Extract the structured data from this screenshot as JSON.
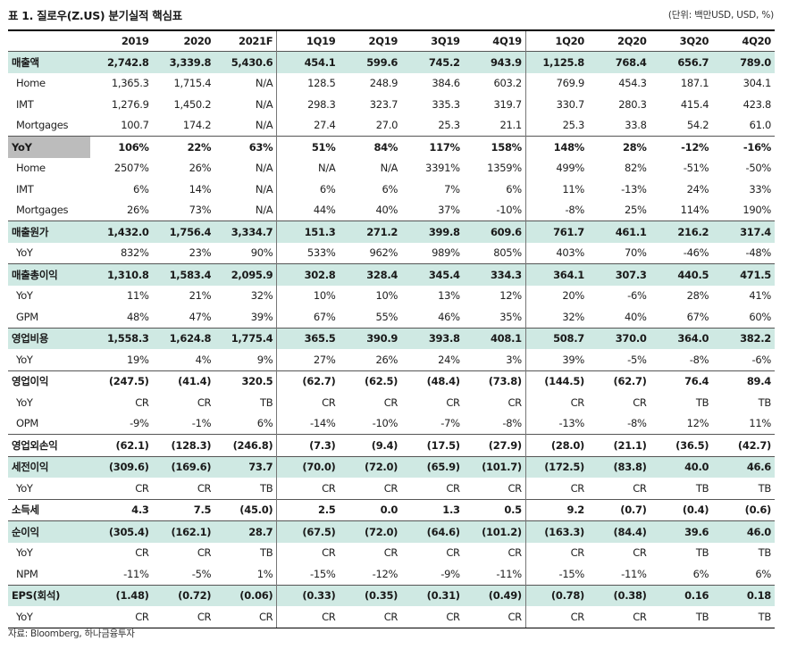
{
  "title": "표 1. 질로우(Z.US) 분기실적 핵심표",
  "unit": "(단위: 백만USD, USD, %)",
  "columns": [
    "2019",
    "2020",
    "2021F",
    "1Q19",
    "2Q19",
    "3Q19",
    "4Q19",
    "1Q20",
    "2Q20",
    "3Q20",
    "4Q20"
  ],
  "rows": [
    {
      "label": "매출액",
      "type": "main",
      "shade": true,
      "values": [
        "2,742.8",
        "3,339.8",
        "5,430.6",
        "454.1",
        "599.6",
        "745.2",
        "943.9",
        "1,125.8",
        "768.4",
        "656.7",
        "789.0"
      ]
    },
    {
      "label": "Home",
      "type": "sub",
      "values": [
        "1,365.3",
        "1,715.4",
        "N/A",
        "128.5",
        "248.9",
        "384.6",
        "603.2",
        "769.9",
        "454.3",
        "187.1",
        "304.1"
      ]
    },
    {
      "label": "IMT",
      "type": "sub",
      "values": [
        "1,276.9",
        "1,450.2",
        "N/A",
        "298.3",
        "323.7",
        "335.3",
        "319.7",
        "330.7",
        "280.3",
        "415.4",
        "423.8"
      ]
    },
    {
      "label": "Mortgages",
      "type": "sub",
      "values": [
        "100.7",
        "174.2",
        "N/A",
        "27.4",
        "27.0",
        "25.3",
        "21.1",
        "25.3",
        "33.8",
        "54.2",
        "61.0"
      ]
    },
    {
      "label": "YoY",
      "type": "main-gray",
      "values": [
        "106%",
        "22%",
        "63%",
        "51%",
        "84%",
        "117%",
        "158%",
        "148%",
        "28%",
        "-12%",
        "-16%"
      ]
    },
    {
      "label": "Home",
      "type": "sub",
      "values": [
        "2507%",
        "26%",
        "N/A",
        "N/A",
        "N/A",
        "3391%",
        "1359%",
        "499%",
        "82%",
        "-51%",
        "-50%"
      ]
    },
    {
      "label": "IMT",
      "type": "sub",
      "values": [
        "6%",
        "14%",
        "N/A",
        "6%",
        "6%",
        "7%",
        "6%",
        "11%",
        "-13%",
        "24%",
        "33%"
      ]
    },
    {
      "label": "Mortgages",
      "type": "sub",
      "values": [
        "26%",
        "73%",
        "N/A",
        "44%",
        "40%",
        "37%",
        "-10%",
        "-8%",
        "25%",
        "114%",
        "190%"
      ]
    },
    {
      "label": "매출원가",
      "type": "main",
      "shade": true,
      "values": [
        "1,432.0",
        "1,756.4",
        "3,334.7",
        "151.3",
        "271.2",
        "399.8",
        "609.6",
        "761.7",
        "461.1",
        "216.2",
        "317.4"
      ]
    },
    {
      "label": "YoY",
      "type": "sub",
      "values": [
        "832%",
        "23%",
        "90%",
        "533%",
        "962%",
        "989%",
        "805%",
        "403%",
        "70%",
        "-46%",
        "-48%"
      ]
    },
    {
      "label": "매출총이익",
      "type": "main",
      "shade": true,
      "values": [
        "1,310.8",
        "1,583.4",
        "2,095.9",
        "302.8",
        "328.4",
        "345.4",
        "334.3",
        "364.1",
        "307.3",
        "440.5",
        "471.5"
      ]
    },
    {
      "label": "YoY",
      "type": "sub",
      "values": [
        "11%",
        "21%",
        "32%",
        "10%",
        "10%",
        "13%",
        "12%",
        "20%",
        "-6%",
        "28%",
        "41%"
      ]
    },
    {
      "label": "GPM",
      "type": "sub",
      "values": [
        "48%",
        "47%",
        "39%",
        "67%",
        "55%",
        "46%",
        "35%",
        "32%",
        "40%",
        "67%",
        "60%"
      ]
    },
    {
      "label": "영업비용",
      "type": "main",
      "shade": true,
      "values": [
        "1,558.3",
        "1,624.8",
        "1,775.4",
        "365.5",
        "390.9",
        "393.8",
        "408.1",
        "508.7",
        "370.0",
        "364.0",
        "382.2"
      ]
    },
    {
      "label": "YoY",
      "type": "sub",
      "values": [
        "19%",
        "4%",
        "9%",
        "27%",
        "26%",
        "24%",
        "3%",
        "39%",
        "-5%",
        "-8%",
        "-6%"
      ]
    },
    {
      "label": "영업이익",
      "type": "main",
      "shade": false,
      "values": [
        "(247.5)",
        "(41.4)",
        "320.5",
        "(62.7)",
        "(62.5)",
        "(48.4)",
        "(73.8)",
        "(144.5)",
        "(62.7)",
        "76.4",
        "89.4"
      ]
    },
    {
      "label": "YoY",
      "type": "sub",
      "values": [
        "CR",
        "CR",
        "TB",
        "CR",
        "CR",
        "CR",
        "CR",
        "CR",
        "CR",
        "TB",
        "TB"
      ]
    },
    {
      "label": "OPM",
      "type": "sub",
      "values": [
        "-9%",
        "-1%",
        "6%",
        "-14%",
        "-10%",
        "-7%",
        "-8%",
        "-13%",
        "-8%",
        "12%",
        "11%"
      ]
    },
    {
      "label": "영업외손익",
      "type": "main",
      "shade": false,
      "values": [
        "(62.1)",
        "(128.3)",
        "(246.8)",
        "(7.3)",
        "(9.4)",
        "(17.5)",
        "(27.9)",
        "(28.0)",
        "(21.1)",
        "(36.5)",
        "(42.7)"
      ]
    },
    {
      "label": "세전이익",
      "type": "main",
      "shade": true,
      "values": [
        "(309.6)",
        "(169.6)",
        "73.7",
        "(70.0)",
        "(72.0)",
        "(65.9)",
        "(101.7)",
        "(172.5)",
        "(83.8)",
        "40.0",
        "46.6"
      ]
    },
    {
      "label": "YoY",
      "type": "sub",
      "values": [
        "CR",
        "CR",
        "TB",
        "CR",
        "CR",
        "CR",
        "CR",
        "CR",
        "CR",
        "TB",
        "TB"
      ]
    },
    {
      "label": "소득세",
      "type": "main",
      "shade": false,
      "values": [
        "4.3",
        "7.5",
        "(45.0)",
        "2.5",
        "0.0",
        "1.3",
        "0.5",
        "9.2",
        "(0.7)",
        "(0.4)",
        "(0.6)"
      ]
    },
    {
      "label": "순이익",
      "type": "main",
      "shade": true,
      "values": [
        "(305.4)",
        "(162.1)",
        "28.7",
        "(67.5)",
        "(72.0)",
        "(64.6)",
        "(101.2)",
        "(163.3)",
        "(84.4)",
        "39.6",
        "46.0"
      ]
    },
    {
      "label": "YoY",
      "type": "sub",
      "values": [
        "CR",
        "CR",
        "TB",
        "CR",
        "CR",
        "CR",
        "CR",
        "CR",
        "CR",
        "TB",
        "TB"
      ]
    },
    {
      "label": "NPM",
      "type": "sub",
      "values": [
        "-11%",
        "-5%",
        "1%",
        "-15%",
        "-12%",
        "-9%",
        "-11%",
        "-15%",
        "-11%",
        "6%",
        "6%"
      ]
    },
    {
      "label": "EPS(회석)",
      "type": "main",
      "shade": true,
      "values": [
        "(1.48)",
        "(0.72)",
        "(0.06)",
        "(0.33)",
        "(0.35)",
        "(0.31)",
        "(0.49)",
        "(0.78)",
        "(0.38)",
        "0.16",
        "0.18"
      ]
    },
    {
      "label": "YoY",
      "type": "sub",
      "values": [
        "CR",
        "CR",
        "CR",
        "CR",
        "CR",
        "CR",
        "CR",
        "CR",
        "CR",
        "TB",
        "TB"
      ]
    }
  ],
  "source": "자료: Bloomberg, 하나금융투자"
}
